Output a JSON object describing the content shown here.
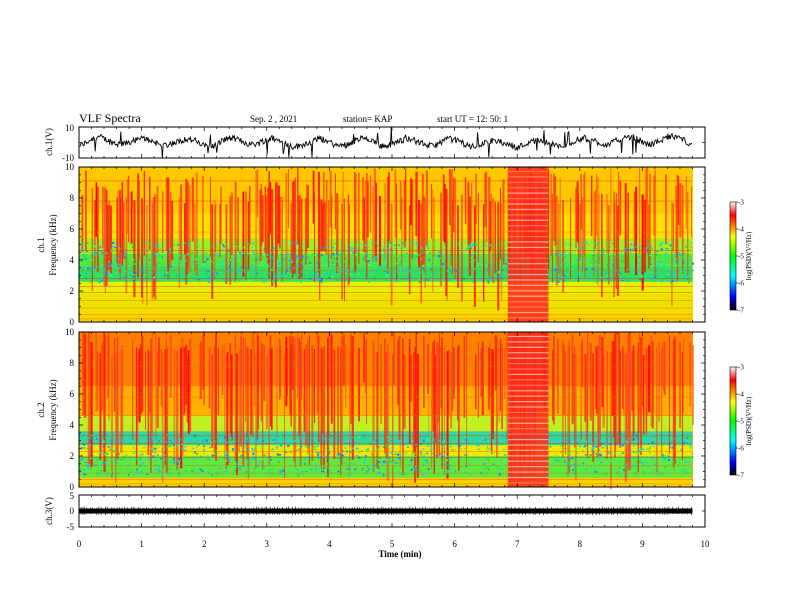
{
  "header": {
    "title": "VLF Spectra",
    "date": "Sep. 2 , 2021",
    "station": "station= KAP",
    "start": "start UT = 12: 50: 1"
  },
  "chart_data": [
    {
      "type": "line",
      "panel": "ch1-waveform",
      "ylabel": "ch.1(V)",
      "ylim": [
        -10,
        10
      ],
      "ytick_labels": [
        "10",
        "-10"
      ]
    },
    {
      "type": "heatmap",
      "panel": "ch1-spectrogram",
      "ylabel_top": "ch.1",
      "ylabel": "Frequency (kHz)",
      "ylim": [
        0,
        10
      ],
      "ytick_labels": [
        "0",
        "2",
        "4",
        "6",
        "8",
        "10"
      ],
      "colorbar": {
        "label": "log(PSD)(V²/Hz)",
        "range": [
          -7,
          -3
        ],
        "tick_labels": [
          "-3",
          "-4",
          "-5",
          "-6",
          "-7"
        ],
        "colors": [
          "#000000",
          "#0000ff",
          "#00ffff",
          "#00ff00",
          "#ffff00",
          "#ff0000",
          "#ffffff"
        ]
      },
      "dominant_colors": [
        "#ff3020",
        "#ffe000",
        "#40e020",
        "#20c0e0",
        "#2050ff"
      ],
      "features": [
        {
          "x": [
            6.85,
            7.5
          ],
          "note": "vertical band with horizontal stripes"
        }
      ]
    },
    {
      "type": "heatmap",
      "panel": "ch2-spectrogram",
      "ylabel_top": "ch.2",
      "ylabel": "Frequency (kHz)",
      "ylim": [
        0,
        10
      ],
      "ytick_labels": [
        "0",
        "2",
        "4",
        "6",
        "8",
        "10"
      ],
      "colorbar": {
        "label": "log(PSD)(V²/Hz)",
        "range": [
          -7,
          -3
        ],
        "tick_labels": [
          "-3",
          "-4",
          "-5",
          "-6",
          "-7"
        ]
      },
      "features": [
        {
          "x": [
            6.85,
            7.5
          ],
          "note": "vertical band with horizontal stripes"
        }
      ]
    },
    {
      "type": "line",
      "panel": "ch3-waveform",
      "ylabel": "ch.3(V)",
      "ylim": [
        -5,
        5
      ],
      "ytick_labels": [
        "5",
        "0",
        "-5"
      ],
      "baseline_value": 0
    }
  ],
  "xaxis": {
    "label": "Time (min)",
    "xlim": [
      0,
      10
    ],
    "tick_labels": [
      "0",
      "1",
      "2",
      "3",
      "4",
      "5",
      "6",
      "7",
      "8",
      "9",
      "10"
    ]
  }
}
